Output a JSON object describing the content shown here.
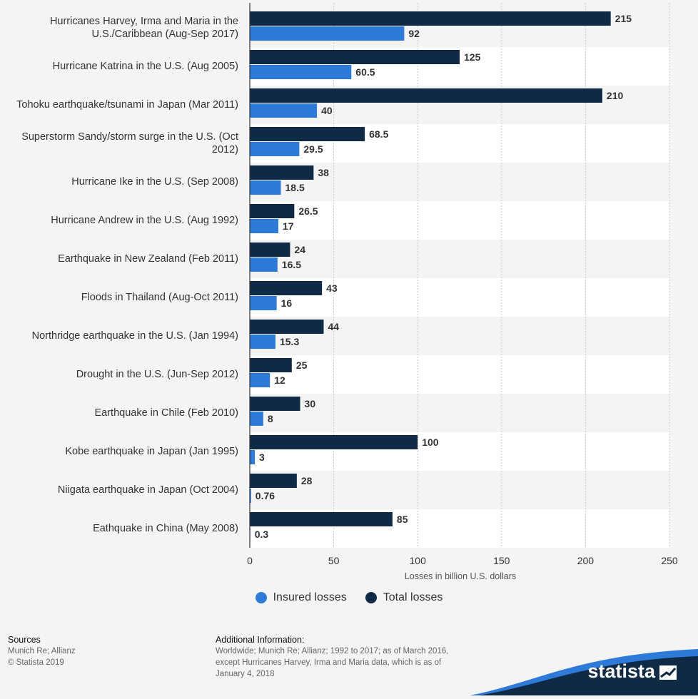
{
  "chart_data": {
    "type": "bar",
    "orientation": "horizontal",
    "categories": [
      "Hurricanes Harvey, Irma and Maria in the U.S./Caribbean (Aug-Sep 2017)",
      "Hurricane Katrina in the U.S. (Aug 2005)",
      "Tohoku earthquake/tsunami in Japan (Mar 2011)",
      "Superstorm Sandy/storm surge in the U.S. (Oct 2012)",
      "Hurricane Ike in the U.S. (Sep 2008)",
      "Hurricane Andrew in the U.S. (Aug 1992)",
      "Earthquake in New Zealand (Feb 2011)",
      "Floods in Thailand (Aug-Oct 2011)",
      "Northridge earthquake in the U.S. (Jan 1994)",
      "Drought in the U.S. (Jun-Sep 2012)",
      "Earthquake in Chile (Feb 2010)",
      "Kobe earthquake in Japan (Jan 1995)",
      "Niigata earthquake in Japan (Oct 2004)",
      "Eathquake in China (May 2008)"
    ],
    "series": [
      {
        "name": "Total losses",
        "color": "#0f2a45",
        "values": [
          215,
          125,
          210,
          68.5,
          38,
          26.5,
          24,
          43,
          44,
          25,
          30,
          100,
          28,
          85
        ],
        "labels": [
          "215",
          "125",
          "210",
          "68.5",
          "38",
          "26.5",
          "24",
          "43",
          "44",
          "25",
          "30",
          "100",
          "28",
          "85"
        ]
      },
      {
        "name": "Insured losses",
        "color": "#2e7ad8",
        "values": [
          92,
          60.5,
          40,
          29.5,
          18.5,
          17,
          16.5,
          16,
          15.3,
          12,
          8,
          3,
          0.76,
          0.3
        ],
        "labels": [
          "92",
          "60.5",
          "40",
          "29.5",
          "18.5",
          "17",
          "16.5",
          "16",
          "15.3",
          "12",
          "8",
          "3",
          "0.76",
          "0.3"
        ]
      }
    ],
    "xlabel": "Losses in billion U.S. dollars",
    "xlim": [
      0,
      250
    ],
    "ticks": [
      0,
      50,
      100,
      150,
      200,
      250
    ],
    "tick_labels": [
      "0",
      "50",
      "100",
      "150",
      "200",
      "250"
    ],
    "grid": true,
    "legend": [
      "Insured losses",
      "Total losses"
    ],
    "legend_position": "bottom"
  },
  "legend": {
    "insured": {
      "label": "Insured losses",
      "color": "#2e7ad8"
    },
    "total": {
      "label": "Total losses",
      "color": "#0f2a45"
    }
  },
  "footer": {
    "sources_heading": "Sources",
    "sources_lines": [
      "Munich Re; Allianz",
      "© Statista 2019"
    ],
    "additional_heading": "Additional Information:",
    "additional_lines": [
      "Worldwide; Munich Re; Allianz; 1992 to 2017; as of March 2016,",
      "except Hurricanes Harvey, Irma and Maria data, which is as of",
      "January 4, 2018"
    ]
  },
  "brand": {
    "logo_text": "statista",
    "icon": "statista-logo-icon"
  }
}
